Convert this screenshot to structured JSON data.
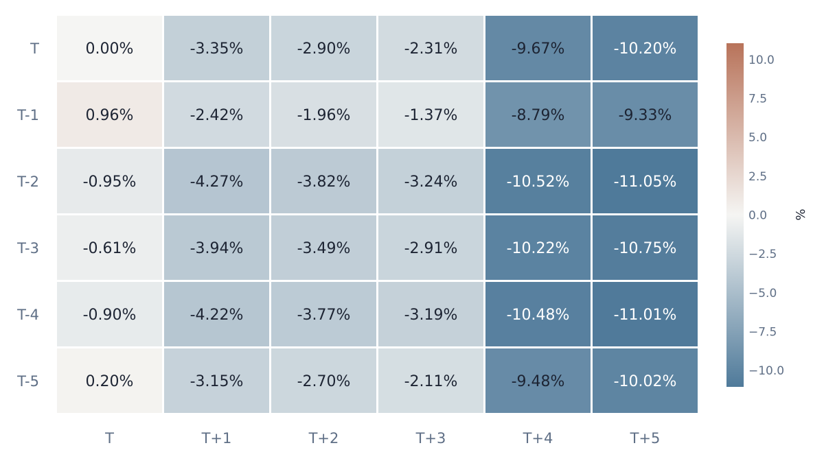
{
  "chart_data": {
    "type": "heatmap",
    "title": "",
    "xlabel": "",
    "ylabel": "",
    "x": [
      "T",
      "T+1",
      "T+2",
      "T+3",
      "T+4",
      "T+5"
    ],
    "y": [
      "T",
      "T-1",
      "T-2",
      "T-3",
      "T-4",
      "T-5"
    ],
    "values": [
      [
        0.0,
        -3.35,
        -2.9,
        -2.31,
        -9.67,
        -10.2
      ],
      [
        0.96,
        -2.42,
        -1.96,
        -1.37,
        -8.79,
        -9.33
      ],
      [
        -0.95,
        -4.27,
        -3.82,
        -3.24,
        -10.52,
        -11.05
      ],
      [
        -0.61,
        -3.94,
        -3.49,
        -2.91,
        -10.22,
        -10.75
      ],
      [
        -0.9,
        -4.22,
        -3.77,
        -3.19,
        -10.48,
        -11.01
      ],
      [
        0.2,
        -3.15,
        -2.7,
        -2.11,
        -9.48,
        -10.02
      ]
    ],
    "labels": [
      [
        "0.00%",
        "-3.35%",
        "-2.90%",
        "-2.31%",
        "-9.67%",
        "-10.20%"
      ],
      [
        "0.96%",
        "-2.42%",
        "-1.96%",
        "-1.37%",
        "-8.79%",
        "-9.33%"
      ],
      [
        "-0.95%",
        "-4.27%",
        "-3.82%",
        "-3.24%",
        "-10.52%",
        "-11.05%"
      ],
      [
        "-0.61%",
        "-3.94%",
        "-3.49%",
        "-2.91%",
        "-10.22%",
        "-10.75%"
      ],
      [
        "-0.90%",
        "-4.22%",
        "-3.77%",
        "-3.19%",
        "-10.48%",
        "-11.01%"
      ],
      [
        "0.20%",
        "-3.15%",
        "-2.70%",
        "-2.11%",
        "-9.48%",
        "-10.02%"
      ]
    ],
    "colorscale": {
      "zmin": -11.05,
      "zmax": 11.05,
      "negative_color": "#4f7a9a",
      "mid_color": "#f5f5f3",
      "positive_color": "#b8735a"
    },
    "colorbar": {
      "title": "%",
      "tick_values": [
        10,
        7.5,
        5,
        2.5,
        0,
        -2.5,
        -5,
        -7.5,
        -10
      ],
      "tick_labels": [
        "10.0",
        "7.5",
        "5.0",
        "2.5",
        "0.0",
        "−2.5",
        "−5.0",
        "−7.5",
        "−10.0"
      ]
    },
    "text_colors": {
      "dark": "#1d2433",
      "light": "#ffffff"
    }
  }
}
